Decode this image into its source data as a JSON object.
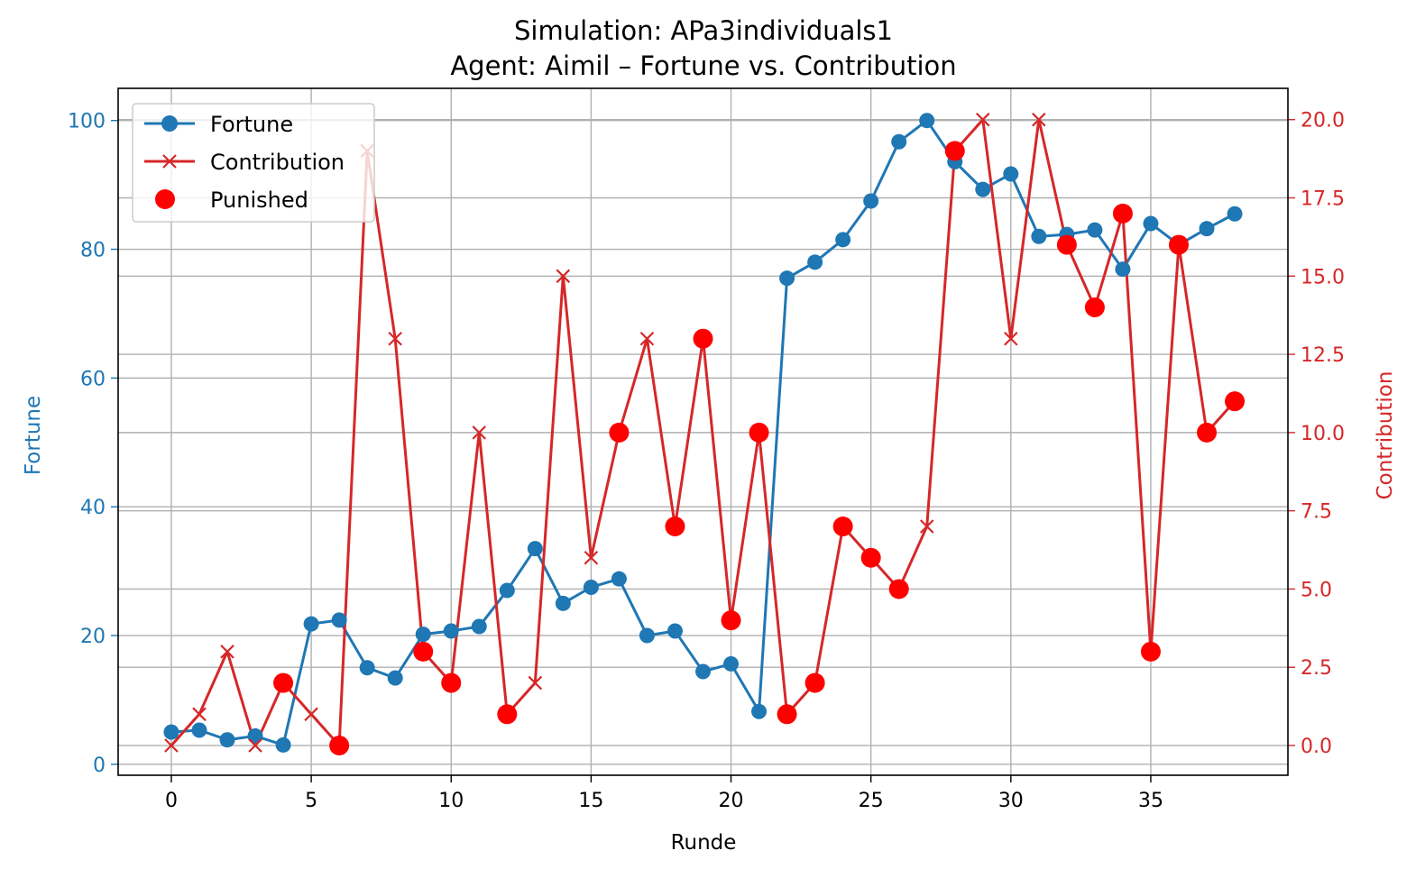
{
  "chart_data": {
    "type": "line",
    "title": "Simulation: APa3individuals1",
    "subtitle": "Agent: Aimil – Fortune vs. Contribution",
    "xlabel": "Runde",
    "ylabel_left": "Fortune",
    "ylabel_right": "Contribution",
    "xlim": [
      -1.9,
      39.9
    ],
    "ylim_left": [
      -1.7,
      105
    ],
    "ylim_right": [
      -0.95,
      21
    ],
    "x_ticks": [
      0,
      5,
      10,
      15,
      20,
      25,
      30,
      35
    ],
    "y_left_ticks": [
      0,
      20,
      40,
      60,
      80,
      100
    ],
    "y_right_ticks": [
      "0.0",
      "2.5",
      "5.0",
      "7.5",
      "10.0",
      "12.5",
      "15.0",
      "17.5",
      "20.0"
    ],
    "grid": true,
    "legend_position": "top-left",
    "colors": {
      "fortune": "#1f77b4",
      "contribution": "#d62728",
      "punished": "#ff0000",
      "grid": "#b0b0b0"
    },
    "series": [
      {
        "name": "Fortune",
        "axis": "left",
        "marker": "circle",
        "x": [
          0,
          1,
          2,
          3,
          4,
          5,
          6,
          7,
          8,
          9,
          10,
          11,
          12,
          13,
          14,
          15,
          16,
          17,
          18,
          19,
          20,
          21,
          22,
          23,
          24,
          25,
          26,
          27,
          28,
          29,
          30,
          31,
          32,
          33,
          34,
          35,
          36,
          37,
          38
        ],
        "values": [
          5,
          5.3,
          3.8,
          4.4,
          3,
          21.8,
          22.4,
          15,
          13.4,
          20.2,
          20.7,
          21.4,
          27,
          33.5,
          25,
          27.5,
          28.8,
          20,
          20.7,
          14.4,
          15.6,
          8.2,
          75.5,
          78,
          81.5,
          87.5,
          96.7,
          100,
          93.6,
          89.3,
          91.7,
          82,
          82.3,
          83,
          76.9,
          84,
          80.7,
          83.2,
          85.5
        ]
      },
      {
        "name": "Contribution",
        "axis": "right",
        "marker": "x",
        "x": [
          0,
          1,
          2,
          3,
          4,
          5,
          6,
          7,
          8,
          9,
          10,
          11,
          12,
          13,
          14,
          15,
          16,
          17,
          18,
          19,
          20,
          21,
          22,
          23,
          24,
          25,
          26,
          27,
          28,
          29,
          30,
          31,
          32,
          33,
          34,
          35,
          36,
          37,
          38
        ],
        "values": [
          0,
          1,
          3,
          0,
          2,
          1,
          0,
          19,
          13,
          3,
          2,
          10,
          1,
          2,
          15,
          6,
          10,
          13,
          7,
          13,
          4,
          10,
          1,
          2,
          7,
          6,
          5,
          7,
          19,
          20,
          13,
          20,
          16,
          14,
          17,
          3,
          16,
          10,
          11
        ]
      },
      {
        "name": "Punished",
        "axis": "right",
        "marker": "scatter",
        "x": [
          4,
          6,
          9,
          10,
          12,
          16,
          18,
          19,
          20,
          21,
          22,
          23,
          24,
          25,
          26,
          28,
          32,
          33,
          34,
          35,
          36,
          37,
          38
        ],
        "values": [
          2,
          0,
          3,
          2,
          1,
          10,
          7,
          13,
          4,
          10,
          1,
          2,
          7,
          6,
          5,
          19,
          16,
          14,
          17,
          3,
          16,
          10,
          11
        ]
      }
    ]
  }
}
